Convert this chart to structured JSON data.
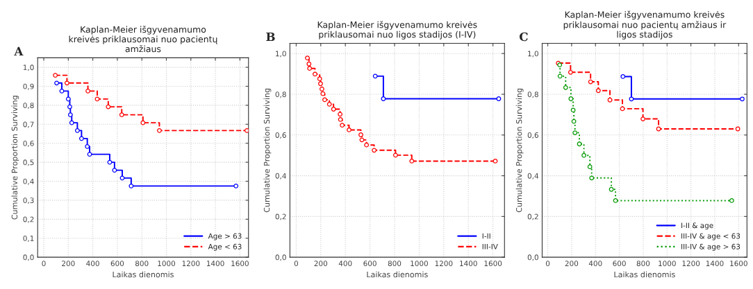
{
  "chart_data": [
    {
      "type": "step",
      "title": "Kaplan-Meier išgyvenamumo\nkreivės priklausomai nuo pacientų\namžiaus",
      "xlabel": "Laikas dienomis",
      "ylabel": "Cumulative Proportion Surviving",
      "annotations": [
        "A"
      ],
      "xlim": [
        -50,
        1670
      ],
      "xticks": [
        0,
        200,
        400,
        600,
        800,
        1000,
        1200,
        1400,
        1600
      ],
      "ylim": [
        0,
        1.05
      ],
      "yticks": [
        {
          "value": 0,
          "label": "0,0"
        },
        {
          "value": 0.1,
          "label": "0,1"
        },
        {
          "value": 0.2,
          "label": "0,2"
        },
        {
          "value": 0.3,
          "label": "0,3"
        },
        {
          "value": 0.4,
          "label": "0,4"
        },
        {
          "value": 0.5,
          "label": "0,5"
        },
        {
          "value": 0.6,
          "label": "0,6"
        },
        {
          "value": 0.7,
          "label": "0,7"
        },
        {
          "value": 0.8,
          "label": "0,8"
        },
        {
          "value": 0.9,
          "label": "0,9"
        },
        {
          "value": 1.0,
          "label": "1,0"
        }
      ],
      "grid": true,
      "legend": "bottom right",
      "marker": "circle",
      "series": [
        {
          "name": "Age > 63",
          "color": "#0000ff",
          "line_style": "solid",
          "x": [
            105,
            147,
            200,
            212,
            217,
            228,
            274,
            308,
            355,
            374,
            538,
            577,
            640,
            713,
            1568
          ],
          "values": [
            0.917,
            0.875,
            0.833,
            0.792,
            0.75,
            0.708,
            0.667,
            0.625,
            0.583,
            0.542,
            0.5,
            0.458,
            0.417,
            0.375,
            0.375
          ]
        },
        {
          "name": "Age < 63",
          "color": "#ff0000",
          "line_style": "dashed",
          "x": [
            94,
            189,
            360,
            436,
            526,
            636,
            809,
            943,
            1657
          ],
          "values": [
            0.958,
            0.917,
            0.875,
            0.833,
            0.792,
            0.75,
            0.708,
            0.667,
            0.667
          ]
        }
      ]
    },
    {
      "type": "step",
      "title": "Kaplan-Meier išgyvenamumo kreivės\npriklausomai nuo ligos stadijos (I-IV)",
      "xlabel": "Laikas dienomis",
      "ylabel": "Cumulative Proportion Surviving",
      "annotations": [
        "B"
      ],
      "xlim": [
        -51,
        1694
      ],
      "xticks": [
        0,
        200,
        400,
        600,
        800,
        1000,
        1200,
        1400,
        1600
      ],
      "ylim": [
        0,
        1.05
      ],
      "yticks": [
        {
          "value": 0,
          "label": "0,0"
        },
        {
          "value": 0.2,
          "label": "0,2"
        },
        {
          "value": 0.4,
          "label": "0,4"
        },
        {
          "value": 0.6,
          "label": "0,6"
        },
        {
          "value": 0.8,
          "label": "0,8"
        },
        {
          "value": 1.0,
          "label": "1,0"
        }
      ],
      "grid": true,
      "legend": "bottom right",
      "marker": "circle",
      "series": [
        {
          "name": "I-II",
          "color": "#0000ff",
          "line_style": "solid",
          "x": [
            643,
            709,
            1647
          ],
          "values": [
            0.889,
            0.778,
            0.778
          ]
        },
        {
          "name": "III-IV",
          "color": "#ff0000",
          "line_style": "dashed",
          "x": [
            91,
            104,
            109,
            153,
            191,
            198,
            209,
            217,
            232,
            270,
            304,
            357,
            360,
            374,
            430,
            526,
            534,
            572,
            634,
            808,
            940,
            1619
          ],
          "values": [
            0.978,
            0.949,
            0.927,
            0.899,
            0.876,
            0.852,
            0.826,
            0.803,
            0.773,
            0.751,
            0.727,
            0.702,
            0.676,
            0.648,
            0.625,
            0.601,
            0.576,
            0.551,
            0.525,
            0.501,
            0.472,
            0.472
          ]
        }
      ]
    },
    {
      "type": "step",
      "title": "Kaplan-Meier išgyvenamumo kreivės\npriklausomai nuo pacientų amžiaus ir\nligos stadijos",
      "xlabel": "Laikas dienomis",
      "ylabel": "Cumulative Proportion Surviving",
      "annotations": [
        "C"
      ],
      "xlim": [
        -47,
        1670
      ],
      "xticks": [
        0,
        200,
        400,
        600,
        800,
        1000,
        1200,
        1400,
        1600
      ],
      "ylim": [
        0,
        1.05
      ],
      "yticks": [
        {
          "value": 0,
          "label": "0,0"
        },
        {
          "value": 0.2,
          "label": "0,2"
        },
        {
          "value": 0.4,
          "label": "0,4"
        },
        {
          "value": 0.6,
          "label": "0,6"
        },
        {
          "value": 0.8,
          "label": "0,8"
        },
        {
          "value": 1.0,
          "label": "1,0"
        }
      ],
      "grid": true,
      "legend": "bottom right",
      "marker": "circle",
      "series": [
        {
          "name": "I-II & age",
          "color": "#0000ff",
          "line_style": "solid",
          "x": [
            630,
            701,
            1630
          ],
          "values": [
            0.887,
            0.777,
            0.777
          ]
        },
        {
          "name": "III-IV & age < 63",
          "color": "#ff0000",
          "line_style": "dashed",
          "x": [
            88,
            191,
            359,
            424,
            521,
            626,
            798,
            929,
            1593
          ],
          "values": [
            0.953,
            0.908,
            0.861,
            0.818,
            0.772,
            0.729,
            0.679,
            0.63,
            0.63
          ]
        },
        {
          "name": "III-IV & age > 63",
          "color": "#009900",
          "line_style": "dotted",
          "x": [
            100,
            103,
            150,
            194,
            213,
            219,
            228,
            265,
            303,
            353,
            368,
            533,
            568,
            1542
          ],
          "values": [
            0.944,
            0.889,
            0.833,
            0.778,
            0.722,
            0.667,
            0.611,
            0.556,
            0.5,
            0.444,
            0.389,
            0.333,
            0.278,
            0.278
          ]
        }
      ]
    }
  ]
}
